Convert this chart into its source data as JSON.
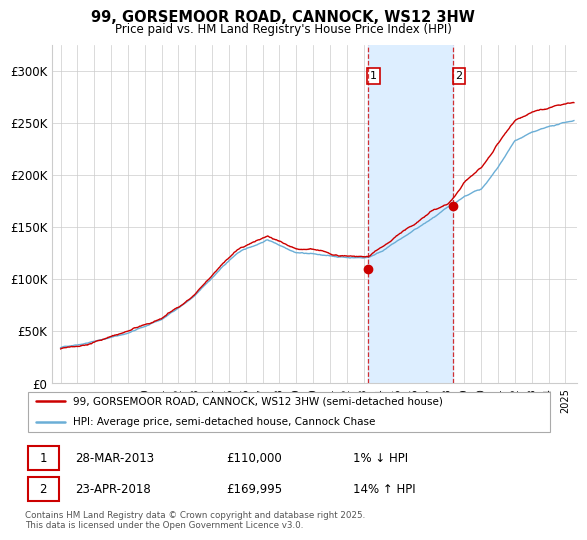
{
  "title": "99, GORSEMOOR ROAD, CANNOCK, WS12 3HW",
  "subtitle": "Price paid vs. HM Land Registry's House Price Index (HPI)",
  "ylim": [
    0,
    325000
  ],
  "yticks": [
    0,
    50000,
    100000,
    150000,
    200000,
    250000,
    300000
  ],
  "ytick_labels": [
    "£0",
    "£50K",
    "£100K",
    "£150K",
    "£200K",
    "£250K",
    "£300K"
  ],
  "xlim_start": 1994.5,
  "xlim_end": 2025.7,
  "xtick_years": [
    1995,
    1996,
    1997,
    1998,
    1999,
    2000,
    2001,
    2002,
    2003,
    2004,
    2005,
    2006,
    2007,
    2008,
    2009,
    2010,
    2011,
    2012,
    2013,
    2014,
    2015,
    2016,
    2017,
    2018,
    2019,
    2020,
    2021,
    2022,
    2023,
    2024,
    2025
  ],
  "hpi_color": "#6baed6",
  "price_color": "#cc0000",
  "sale1_year": 2013.24,
  "sale1_price": 110000,
  "sale2_year": 2018.31,
  "sale2_price": 169995,
  "legend_line1": "99, GORSEMOOR ROAD, CANNOCK, WS12 3HW (semi-detached house)",
  "legend_line2": "HPI: Average price, semi-detached house, Cannock Chase",
  "footer": "Contains HM Land Registry data © Crown copyright and database right 2025.\nThis data is licensed under the Open Government Licence v3.0.",
  "shade_color": "#ddeeff",
  "background_color": "#ffffff",
  "hpi_knots": [
    [
      1995.0,
      35000
    ],
    [
      1997.0,
      42000
    ],
    [
      1999.0,
      50000
    ],
    [
      2001.0,
      62000
    ],
    [
      2003.0,
      85000
    ],
    [
      2004.5,
      110000
    ],
    [
      2005.5,
      125000
    ],
    [
      2006.5,
      132000
    ],
    [
      2007.3,
      138000
    ],
    [
      2008.0,
      133000
    ],
    [
      2009.0,
      127000
    ],
    [
      2010.0,
      126000
    ],
    [
      2011.0,
      123000
    ],
    [
      2012.0,
      122000
    ],
    [
      2013.0,
      122000
    ],
    [
      2013.3,
      122500
    ],
    [
      2014.0,
      128000
    ],
    [
      2015.0,
      138000
    ],
    [
      2016.0,
      148000
    ],
    [
      2017.0,
      158000
    ],
    [
      2018.0,
      168000
    ],
    [
      2018.5,
      172000
    ],
    [
      2019.0,
      178000
    ],
    [
      2020.0,
      185000
    ],
    [
      2021.0,
      205000
    ],
    [
      2022.0,
      230000
    ],
    [
      2023.0,
      238000
    ],
    [
      2024.0,
      242000
    ],
    [
      2025.5,
      248000
    ]
  ],
  "price_extra_knots": [
    [
      1995.0,
      36000
    ],
    [
      1997.0,
      43000
    ],
    [
      1999.0,
      51500
    ],
    [
      2001.0,
      64000
    ],
    [
      2003.0,
      88000
    ],
    [
      2004.5,
      113000
    ],
    [
      2005.5,
      128000
    ],
    [
      2006.5,
      135000
    ],
    [
      2007.3,
      140000
    ],
    [
      2008.0,
      135000
    ],
    [
      2009.0,
      129000
    ],
    [
      2010.0,
      128000
    ],
    [
      2011.0,
      125000
    ],
    [
      2012.0,
      123000
    ],
    [
      2013.0,
      122000
    ],
    [
      2013.3,
      122000
    ],
    [
      2014.0,
      130000
    ],
    [
      2015.0,
      141000
    ],
    [
      2016.0,
      152000
    ],
    [
      2017.0,
      164000
    ],
    [
      2018.0,
      170000
    ],
    [
      2018.5,
      180000
    ],
    [
      2019.0,
      192000
    ],
    [
      2020.0,
      205000
    ],
    [
      2021.0,
      228000
    ],
    [
      2022.0,
      250000
    ],
    [
      2023.0,
      258000
    ],
    [
      2024.0,
      262000
    ],
    [
      2025.5,
      268000
    ]
  ]
}
